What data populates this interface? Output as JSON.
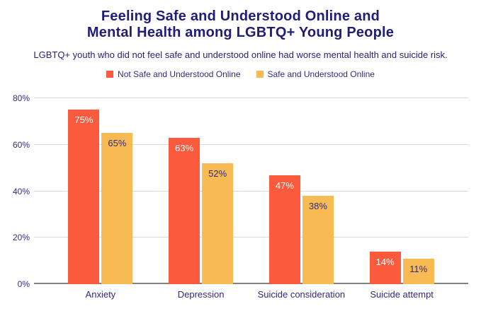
{
  "title": {
    "line1": "Feeling Safe and Understood Online and",
    "line2": "Mental Health among LGBTQ+ Young People"
  },
  "subtitle": "LGBTQ+ youth who did not feel safe and understood online had worse mental health and suicide risk.",
  "colors": {
    "title_text": "#201d75",
    "subtitle_text": "#262278",
    "axis_text": "#2e2b7d",
    "gridline": "#d9d9d9",
    "axis_line": "#818181",
    "background": "#ffffff",
    "series_not_safe": "#fc5a3d",
    "series_safe": "#f8bb54"
  },
  "chart_data": {
    "type": "bar",
    "title": "Feeling Safe and Understood Online and Mental Health among LGBTQ+ Young People",
    "subtitle": "LGBTQ+ youth who did not feel safe and understood online had worse mental health and suicide risk.",
    "categories": [
      "Anxiety",
      "Depression",
      "Suicide consideration",
      "Suicide attempt"
    ],
    "series": [
      {
        "name": "Not Safe and Understood Online",
        "color": "#fc5a3d",
        "label_color": "#ffffff",
        "values": [
          75,
          63,
          47,
          14
        ]
      },
      {
        "name": "Safe and Understood Online",
        "color": "#f8bb54",
        "label_color": "#2e2b7d",
        "values": [
          65,
          52,
          38,
          11
        ]
      }
    ],
    "value_suffix": "%",
    "xlabel": "",
    "ylabel": "",
    "y_axis": {
      "tick_labels": [
        "0%",
        "20%",
        "40%",
        "60%",
        "80%"
      ],
      "tick_values": [
        0,
        20,
        40,
        60,
        80
      ],
      "min": 0,
      "max": 80
    },
    "grid": true,
    "legend_position": "top",
    "bar_value_labels": "inside-top"
  }
}
